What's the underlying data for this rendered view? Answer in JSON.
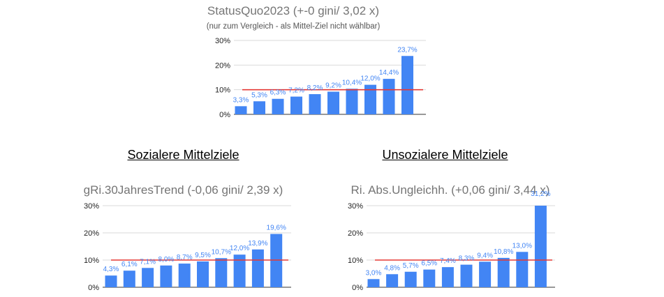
{
  "sections": {
    "left_heading": "Sozialere Mittelziele",
    "right_heading": "Unsozialere Mittelziele"
  },
  "colors": {
    "bar": "#4285f4",
    "target_line": "#e53935",
    "label": "#4285f4",
    "grid": "#d9d9d9"
  },
  "chart_data": [
    {
      "type": "bar",
      "title": "StatusQuo2023 (+-0 gini/ 3,02 x)",
      "subtitle": "(nur zum Vergleich - als Mittel-Ziel nicht wählbar)",
      "values": [
        3.3,
        5.3,
        6.3,
        7.2,
        8.2,
        9.2,
        10.4,
        12.0,
        14.4,
        23.7
      ],
      "labels": [
        "3,3%",
        "5,3%",
        "6,3%",
        "7,2%",
        "8,2%",
        "9,2%",
        "10,4%",
        "12,0%",
        "14,4%",
        "23,7%"
      ],
      "yticks": [
        "0%",
        "10%",
        "20%",
        "30%"
      ],
      "ylim": [
        0,
        30
      ],
      "reference_line": 10,
      "grid": true
    },
    {
      "type": "bar",
      "title": "gRi.30JahresTrend (-0,06 gini/ 2,39 x)",
      "values": [
        4.3,
        6.1,
        7.1,
        8.0,
        8.7,
        9.5,
        10.7,
        12.0,
        13.9,
        19.6
      ],
      "labels": [
        "4,3%",
        "6,1%",
        "7,1%",
        "8,0%",
        "8,7%",
        "9,5%",
        "10,7%",
        "12,0%",
        "13,9%",
        "19,6%"
      ],
      "yticks": [
        "0%",
        "10%",
        "20%",
        "30%"
      ],
      "ylim": [
        0,
        30
      ],
      "reference_line": 10,
      "grid": true
    },
    {
      "type": "bar",
      "title": "Ri. Abs.Ungleichh. (+0,06 gini/ 3,44 x)",
      "values": [
        3.0,
        4.8,
        5.7,
        6.5,
        7.4,
        8.3,
        9.4,
        10.8,
        13.0,
        31.2
      ],
      "labels": [
        "3,0%",
        "4,8%",
        "5,7%",
        "6,5%",
        "7,4%",
        "8,3%",
        "9,4%",
        "10,8%",
        "13,0%",
        "31,2%"
      ],
      "yticks": [
        "0%",
        "10%",
        "20%",
        "30%"
      ],
      "ylim": [
        0,
        30
      ],
      "reference_line": 10,
      "grid": true
    }
  ]
}
